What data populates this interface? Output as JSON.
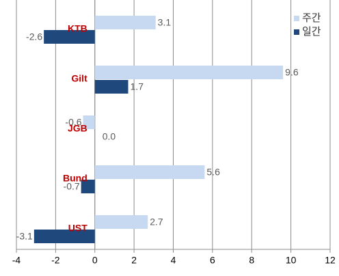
{
  "chart_data": {
    "type": "bar",
    "orientation": "horizontal",
    "categories": [
      "KTB",
      "Gilt",
      "JGB",
      "Bund",
      "UST"
    ],
    "series": [
      {
        "name": "주간",
        "color": "#c6d9f1",
        "values": [
          3.1,
          9.6,
          -0.6,
          5.6,
          2.7
        ]
      },
      {
        "name": "일간",
        "color": "#1f497d",
        "values": [
          -2.6,
          1.7,
          0.0,
          -0.7,
          -3.1
        ],
        "value_labels": [
          "-2.6",
          "1.7",
          "0.0",
          "-0.7",
          "-3.1"
        ]
      }
    ],
    "xlim": [
      -4,
      12
    ],
    "xticks": [
      -4,
      -2,
      0,
      2,
      4,
      6,
      8,
      10,
      12
    ],
    "grid": true,
    "legend": "top-right"
  }
}
